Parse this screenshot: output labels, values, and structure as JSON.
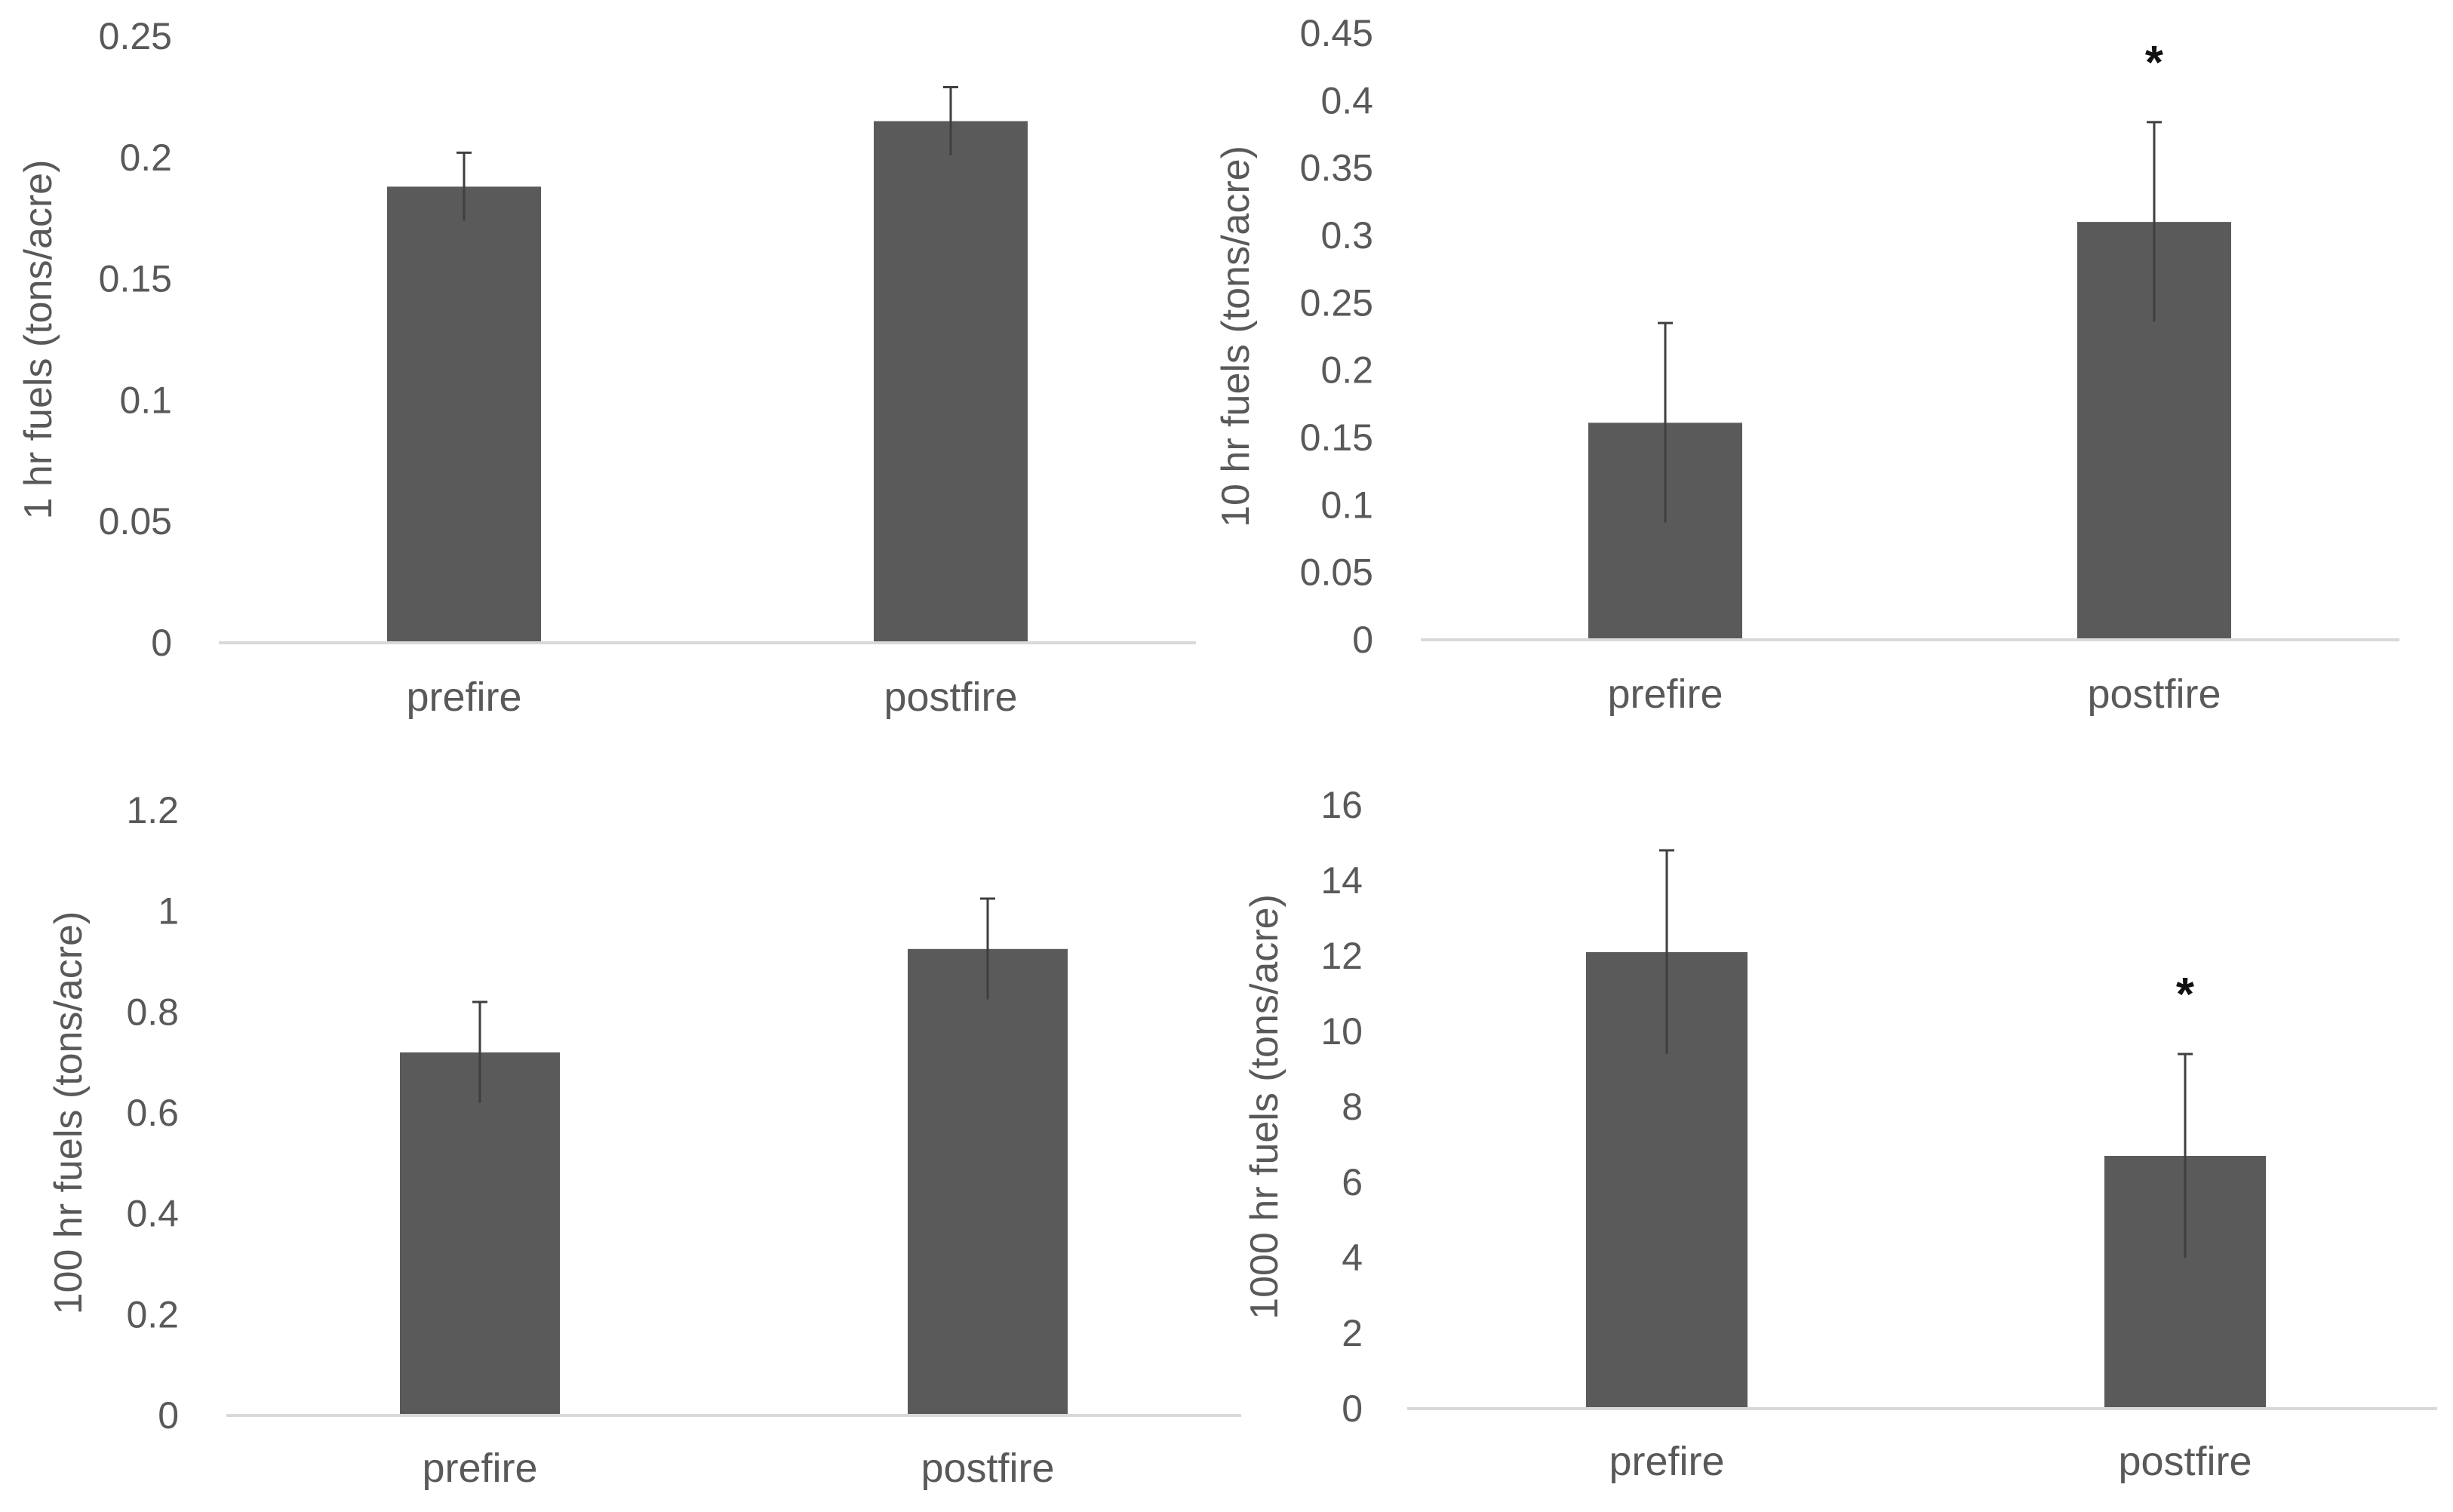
{
  "colors": {
    "bar": "#5a5a5a",
    "error_bar": "#3f3f3f",
    "axis_line": "#d9d9d9",
    "text": "#595959",
    "significance": "#111111"
  },
  "chart_data": [
    {
      "type": "bar",
      "title": "",
      "xlabel": "",
      "ylabel": "1 hr fuels (tons/acre)",
      "categories": [
        "prefire",
        "postfire"
      ],
      "values": [
        0.188,
        0.215
      ],
      "errors": [
        0.014,
        0.014
      ],
      "significance": [
        "",
        ""
      ],
      "ylim": [
        0,
        0.25
      ],
      "yticks": [
        0,
        0.05,
        0.1,
        0.15,
        0.2,
        0.25
      ],
      "ytick_labels": [
        "0",
        "0.05",
        "0.1",
        "0.15",
        "0.2",
        "0.25"
      ],
      "grid": false,
      "legend": "none"
    },
    {
      "type": "bar",
      "title": "",
      "xlabel": "",
      "ylabel": "10 hr fuels (tons/acre)",
      "categories": [
        "prefire",
        "postfire"
      ],
      "values": [
        0.161,
        0.31
      ],
      "errors": [
        0.074,
        0.074
      ],
      "significance": [
        "",
        "*"
      ],
      "ylim": [
        0,
        0.45
      ],
      "yticks": [
        0,
        0.05,
        0.1,
        0.15,
        0.2,
        0.25,
        0.3,
        0.35,
        0.4,
        0.45
      ],
      "ytick_labels": [
        "0",
        "0.05",
        "0.1",
        "0.15",
        "0.2",
        "0.25",
        "0.3",
        "0.35",
        "0.4",
        "0.45"
      ],
      "grid": false,
      "legend": "none"
    },
    {
      "type": "bar",
      "title": "",
      "xlabel": "",
      "ylabel": "100 hr fuels (tons/acre)",
      "categories": [
        "prefire",
        "postfire"
      ],
      "values": [
        0.72,
        0.925
      ],
      "errors": [
        0.1,
        0.1
      ],
      "significance": [
        "",
        ""
      ],
      "ylim": [
        0,
        1.2
      ],
      "yticks": [
        0,
        0.2,
        0.4,
        0.6,
        0.8,
        1,
        1.2
      ],
      "ytick_labels": [
        "0",
        "0.2",
        "0.4",
        "0.6",
        "0.8",
        "1",
        "1.2"
      ],
      "grid": false,
      "legend": "none"
    },
    {
      "type": "bar",
      "title": "",
      "xlabel": "",
      "ylabel": "1000 hr fuels (tons/acre)",
      "categories": [
        "prefire",
        "postfire"
      ],
      "values": [
        12.1,
        6.7
      ],
      "errors": [
        2.7,
        2.7
      ],
      "significance": [
        "",
        "*"
      ],
      "ylim": [
        0,
        16
      ],
      "yticks": [
        0,
        2,
        4,
        6,
        8,
        10,
        12,
        14,
        16
      ],
      "ytick_labels": [
        "0",
        "2",
        "4",
        "6",
        "8",
        "10",
        "12",
        "14",
        "16"
      ],
      "grid": false,
      "legend": "none"
    }
  ]
}
